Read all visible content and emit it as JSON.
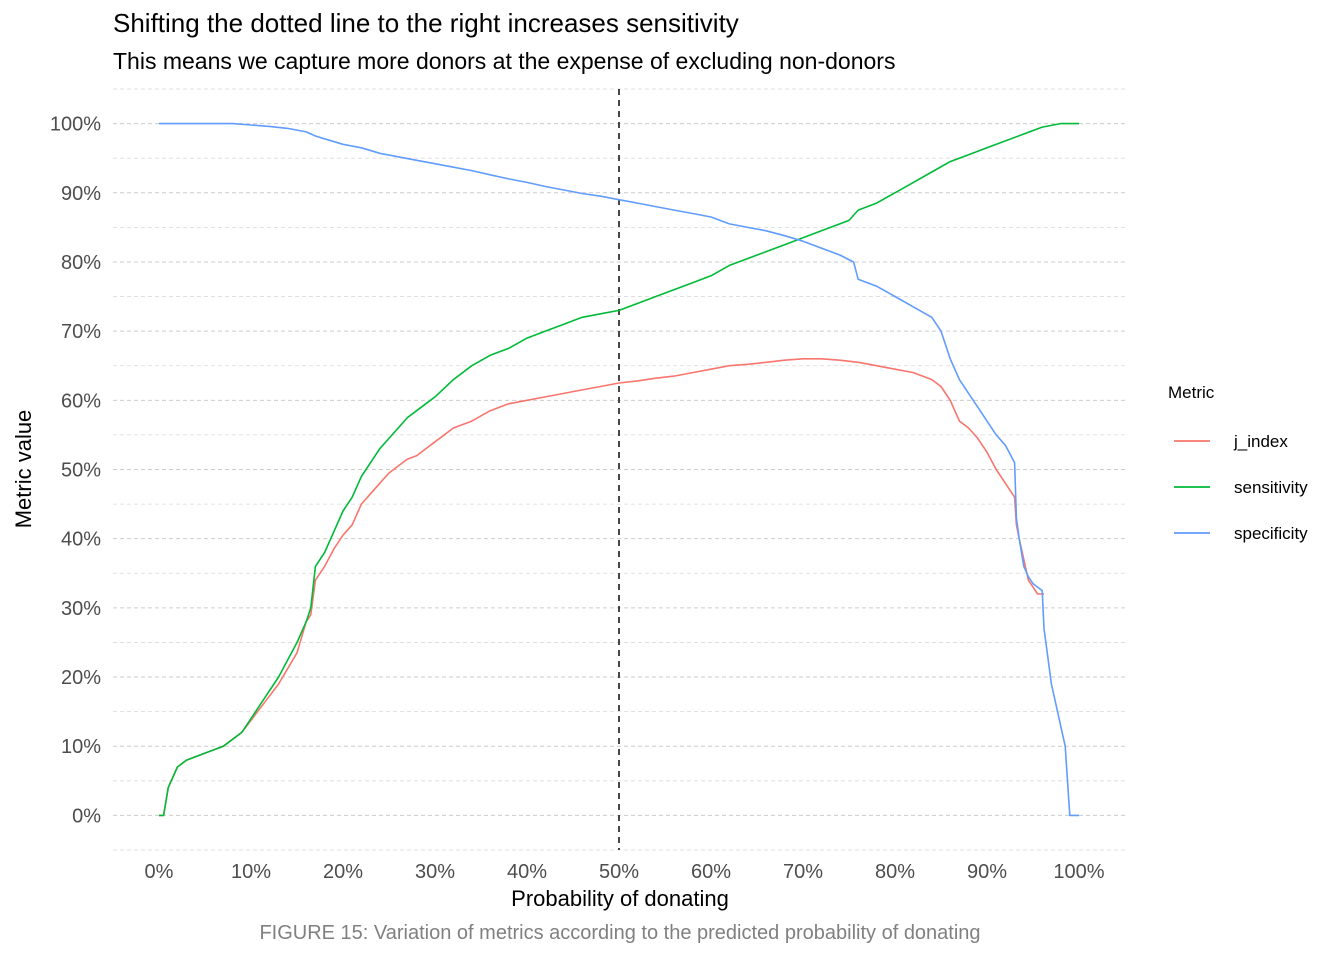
{
  "title": "Shifting the dotted line to the right increases sensitivity",
  "subtitle": "This means we capture more donors at the expense of excluding non-donors",
  "caption": "FIGURE 15: Variation of metrics according to the predicted probability of donating",
  "chart_data": {
    "type": "line",
    "xlabel": "Probability of donating",
    "ylabel": "Metric value",
    "xlim": [
      -0.05,
      1.05
    ],
    "ylim": [
      -0.05,
      1.05
    ],
    "x_ticks": [
      0,
      0.1,
      0.2,
      0.3,
      0.4,
      0.5,
      0.6,
      0.7,
      0.8,
      0.9,
      1.0
    ],
    "x_tick_labels": [
      "0%",
      "10%",
      "20%",
      "30%",
      "40%",
      "50%",
      "60%",
      "70%",
      "80%",
      "90%",
      "100%"
    ],
    "y_ticks": [
      0,
      0.1,
      0.2,
      0.3,
      0.4,
      0.5,
      0.6,
      0.7,
      0.8,
      0.9,
      1.0
    ],
    "y_tick_labels": [
      "0%",
      "10%",
      "20%",
      "30%",
      "40%",
      "50%",
      "60%",
      "70%",
      "80%",
      "90%",
      "100%"
    ],
    "grid": true,
    "grid_style": "dashed",
    "vline": {
      "x": 0.5,
      "style": "dashed",
      "color": "#333333"
    },
    "legend": {
      "title": "Metric",
      "placement": "right"
    },
    "series": [
      {
        "name": "j_index",
        "color": "#F8766D",
        "x": [
          0,
          0.005,
          0.01,
          0.02,
          0.03,
          0.05,
          0.07,
          0.09,
          0.11,
          0.13,
          0.15,
          0.16,
          0.165,
          0.17,
          0.18,
          0.19,
          0.2,
          0.21,
          0.22,
          0.23,
          0.24,
          0.25,
          0.26,
          0.27,
          0.28,
          0.29,
          0.3,
          0.32,
          0.34,
          0.36,
          0.38,
          0.4,
          0.42,
          0.44,
          0.46,
          0.48,
          0.5,
          0.52,
          0.54,
          0.56,
          0.58,
          0.6,
          0.62,
          0.64,
          0.66,
          0.68,
          0.7,
          0.72,
          0.74,
          0.76,
          0.78,
          0.8,
          0.82,
          0.84,
          0.85,
          0.86,
          0.87,
          0.88,
          0.89,
          0.9,
          0.91,
          0.92,
          0.93,
          0.932,
          0.935,
          0.94,
          0.945,
          0.95,
          0.955,
          0.96,
          0.962
        ],
        "values": [
          0,
          0,
          0.04,
          0.07,
          0.08,
          0.09,
          0.1,
          0.12,
          0.155,
          0.19,
          0.235,
          0.28,
          0.29,
          0.34,
          0.36,
          0.385,
          0.405,
          0.42,
          0.45,
          0.465,
          0.48,
          0.495,
          0.505,
          0.515,
          0.52,
          0.53,
          0.54,
          0.56,
          0.57,
          0.585,
          0.595,
          0.6,
          0.605,
          0.61,
          0.615,
          0.62,
          0.625,
          0.628,
          0.632,
          0.635,
          0.64,
          0.645,
          0.65,
          0.652,
          0.655,
          0.658,
          0.66,
          0.66,
          0.658,
          0.655,
          0.65,
          0.645,
          0.64,
          0.63,
          0.62,
          0.6,
          0.57,
          0.56,
          0.545,
          0.525,
          0.5,
          0.48,
          0.46,
          0.42,
          0.4,
          0.37,
          0.34,
          0.33,
          0.32,
          0.32,
          0.32
        ]
      },
      {
        "name": "sensitivity",
        "color": "#00BA38",
        "x": [
          0,
          0.005,
          0.01,
          0.02,
          0.03,
          0.05,
          0.07,
          0.09,
          0.11,
          0.13,
          0.15,
          0.16,
          0.165,
          0.17,
          0.18,
          0.19,
          0.2,
          0.21,
          0.22,
          0.23,
          0.24,
          0.25,
          0.26,
          0.27,
          0.28,
          0.29,
          0.3,
          0.32,
          0.34,
          0.36,
          0.38,
          0.4,
          0.42,
          0.44,
          0.46,
          0.48,
          0.5,
          0.52,
          0.54,
          0.56,
          0.58,
          0.6,
          0.62,
          0.64,
          0.66,
          0.68,
          0.7,
          0.72,
          0.74,
          0.75,
          0.76,
          0.78,
          0.8,
          0.82,
          0.84,
          0.86,
          0.88,
          0.9,
          0.92,
          0.94,
          0.96,
          0.98,
          1.0
        ],
        "values": [
          0,
          0,
          0.04,
          0.07,
          0.08,
          0.09,
          0.1,
          0.12,
          0.16,
          0.2,
          0.25,
          0.28,
          0.3,
          0.36,
          0.38,
          0.41,
          0.44,
          0.46,
          0.49,
          0.51,
          0.53,
          0.545,
          0.56,
          0.575,
          0.585,
          0.595,
          0.605,
          0.63,
          0.65,
          0.665,
          0.675,
          0.69,
          0.7,
          0.71,
          0.72,
          0.725,
          0.73,
          0.74,
          0.75,
          0.76,
          0.77,
          0.78,
          0.795,
          0.805,
          0.815,
          0.825,
          0.835,
          0.845,
          0.855,
          0.86,
          0.875,
          0.885,
          0.9,
          0.915,
          0.93,
          0.945,
          0.955,
          0.965,
          0.975,
          0.985,
          0.995,
          1.0,
          1.0
        ]
      },
      {
        "name": "specificity",
        "color": "#619CFF",
        "x": [
          0,
          0.02,
          0.04,
          0.06,
          0.08,
          0.1,
          0.12,
          0.14,
          0.16,
          0.17,
          0.18,
          0.2,
          0.22,
          0.24,
          0.26,
          0.28,
          0.3,
          0.32,
          0.34,
          0.36,
          0.38,
          0.4,
          0.42,
          0.44,
          0.46,
          0.48,
          0.5,
          0.52,
          0.54,
          0.56,
          0.58,
          0.6,
          0.62,
          0.64,
          0.66,
          0.68,
          0.7,
          0.72,
          0.74,
          0.755,
          0.76,
          0.78,
          0.8,
          0.82,
          0.84,
          0.85,
          0.86,
          0.87,
          0.88,
          0.89,
          0.9,
          0.91,
          0.92,
          0.93,
          0.932,
          0.935,
          0.94,
          0.945,
          0.95,
          0.955,
          0.96,
          0.962,
          0.965,
          0.97,
          0.975,
          0.98,
          0.985,
          0.99,
          0.995,
          1.0
        ],
        "values": [
          1.0,
          1.0,
          1.0,
          1.0,
          1.0,
          0.998,
          0.996,
          0.993,
          0.988,
          0.982,
          0.978,
          0.97,
          0.965,
          0.957,
          0.952,
          0.947,
          0.942,
          0.937,
          0.932,
          0.926,
          0.92,
          0.915,
          0.909,
          0.904,
          0.899,
          0.895,
          0.89,
          0.885,
          0.88,
          0.875,
          0.87,
          0.865,
          0.855,
          0.85,
          0.845,
          0.838,
          0.83,
          0.82,
          0.81,
          0.8,
          0.775,
          0.765,
          0.75,
          0.735,
          0.72,
          0.7,
          0.66,
          0.63,
          0.61,
          0.59,
          0.57,
          0.55,
          0.535,
          0.51,
          0.43,
          0.4,
          0.36,
          0.345,
          0.335,
          0.33,
          0.325,
          0.27,
          0.24,
          0.19,
          0.16,
          0.13,
          0.1,
          0.0,
          0.0,
          0.0
        ]
      }
    ]
  }
}
